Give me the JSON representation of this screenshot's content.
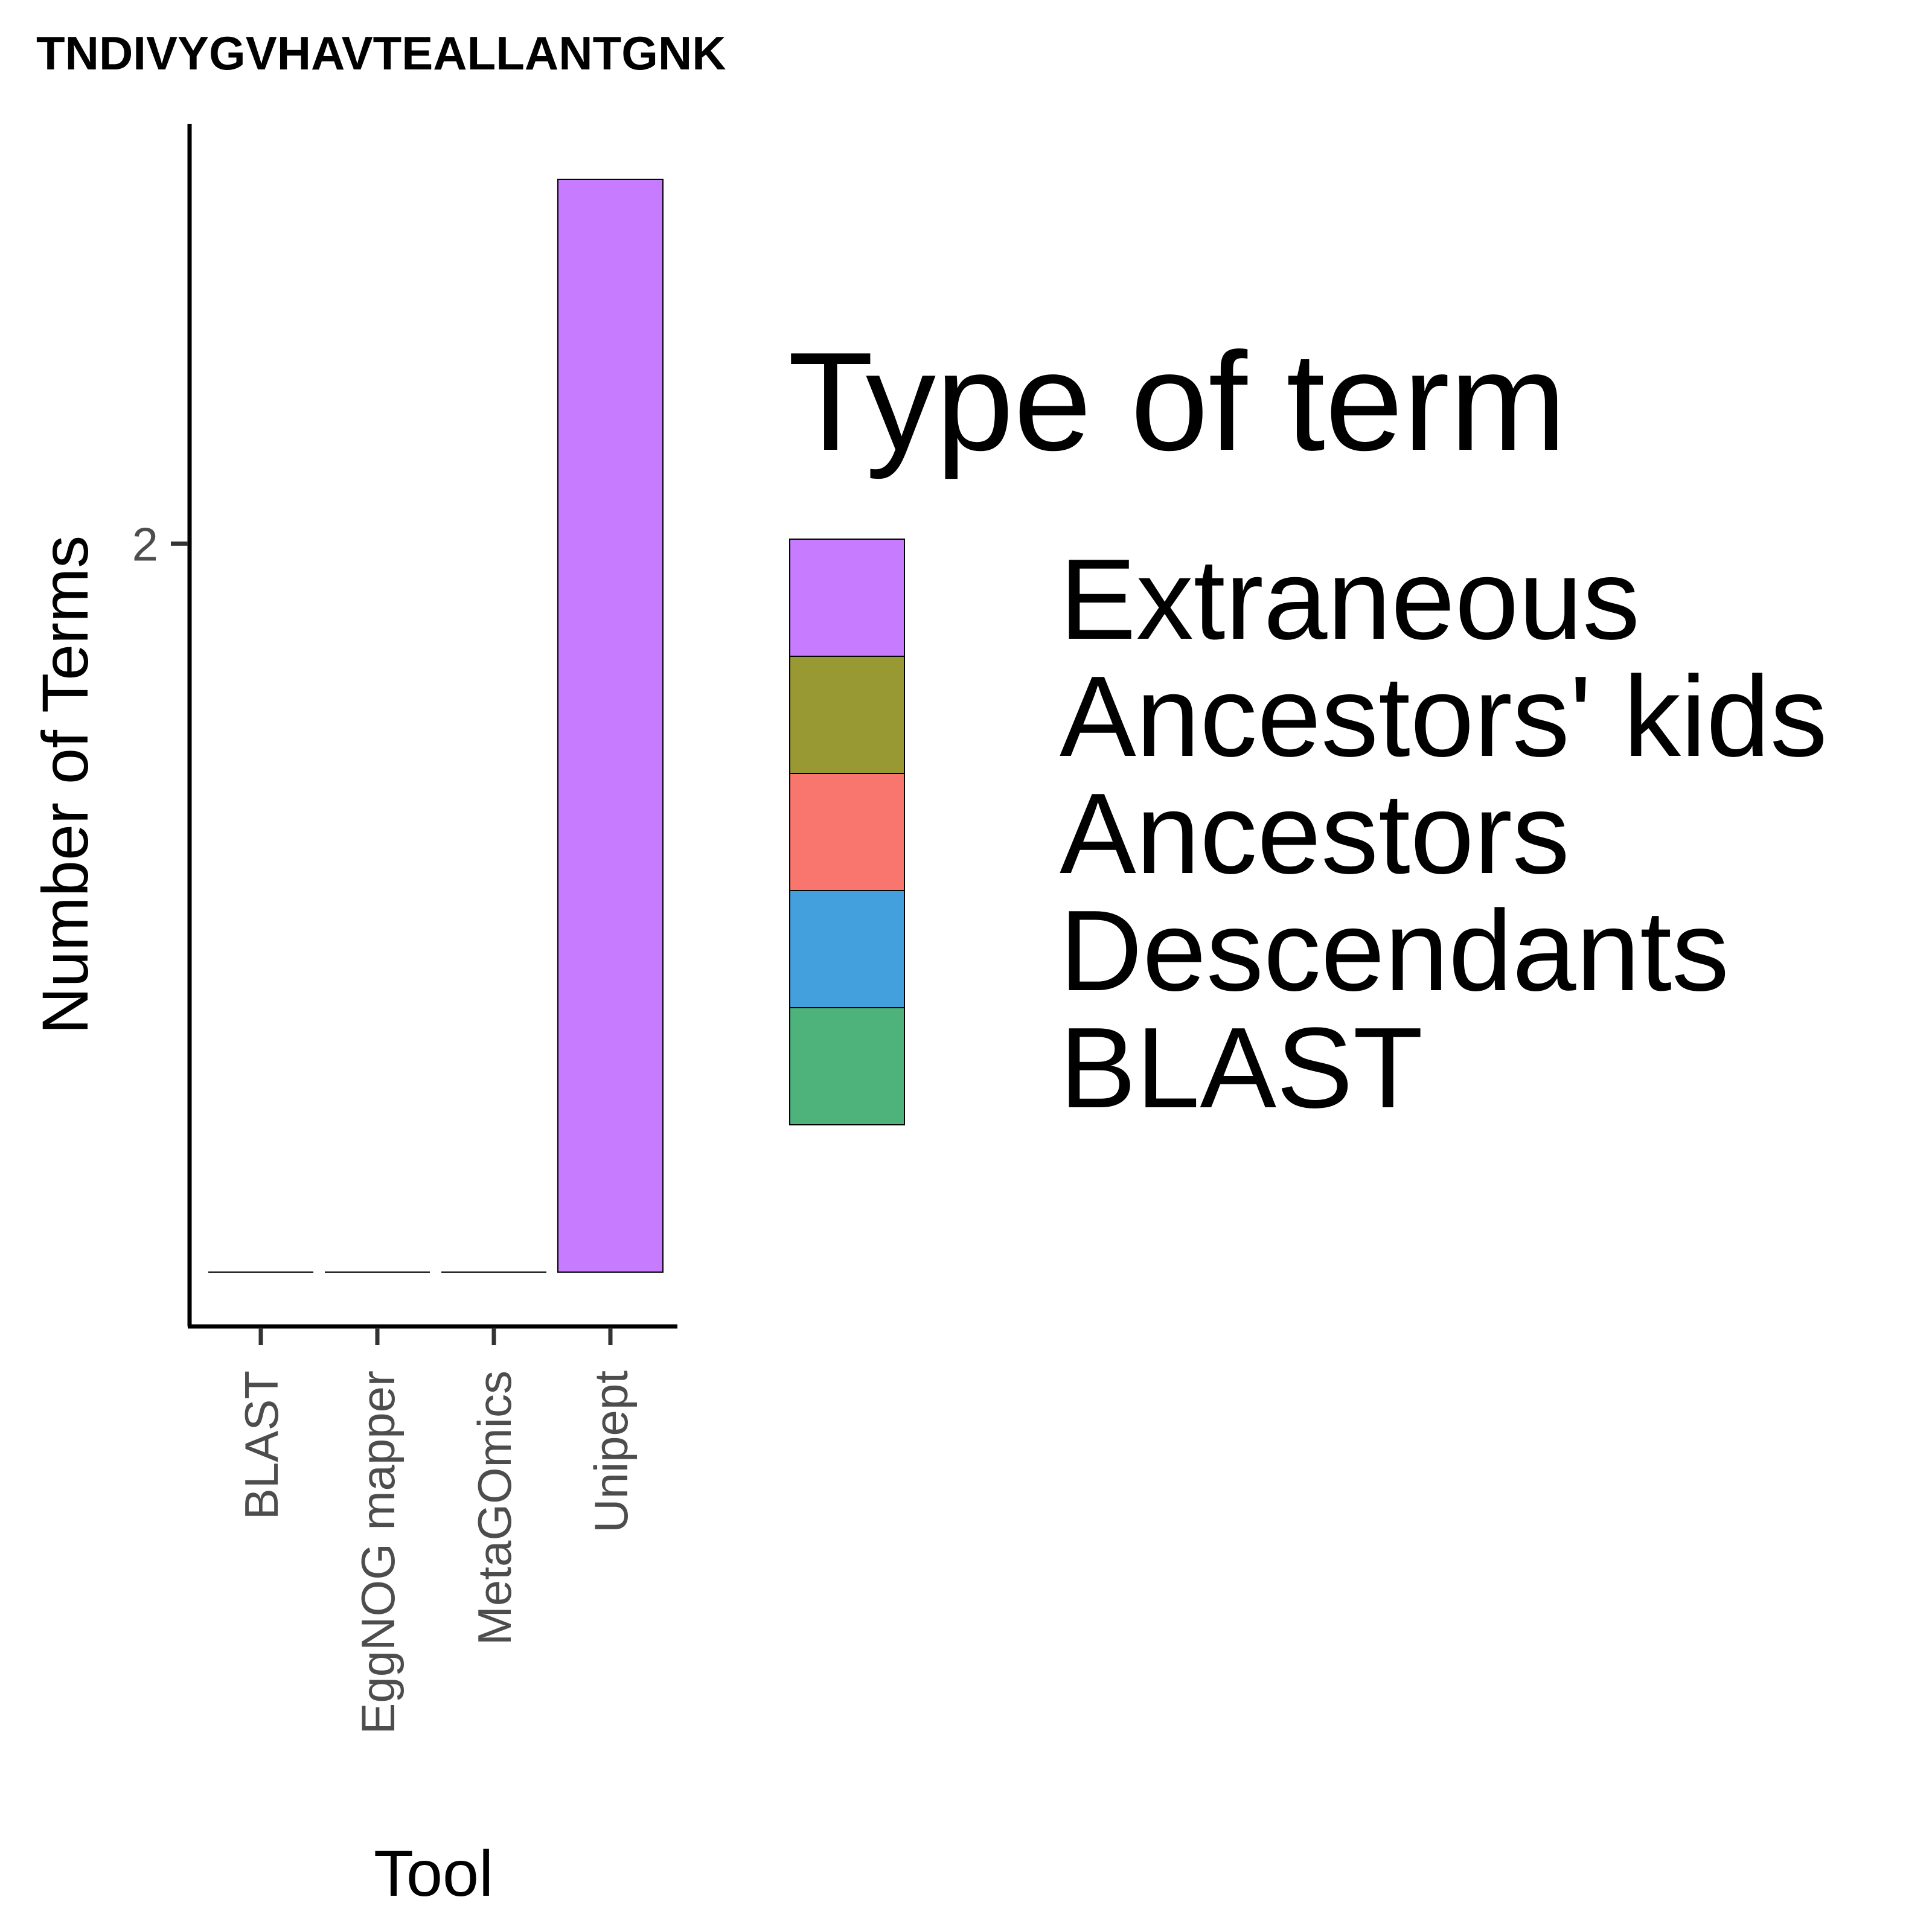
{
  "chart_data": {
    "type": "bar",
    "stacked": true,
    "title": "TNDIVYGVHAVTEALLANTGNK",
    "xlabel": "Tool",
    "ylabel": "Number of Terms",
    "categories": [
      "BLAST",
      "EggNOG mapper",
      "MetaGOmics",
      "Unipept"
    ],
    "series": [
      {
        "name": "Extraneous",
        "color": "#C77CFF",
        "values": [
          0,
          0,
          0,
          3
        ]
      },
      {
        "name": "Ancestors' kids",
        "color": "#999933",
        "values": [
          0,
          0,
          0,
          0
        ]
      },
      {
        "name": "Ancestors",
        "color": "#F8766D",
        "values": [
          0,
          0,
          0,
          0
        ]
      },
      {
        "name": "Descendants",
        "color": "#44A0DD",
        "values": [
          0,
          0,
          0,
          0
        ]
      },
      {
        "name": "BLAST",
        "color": "#4DB37A",
        "values": [
          0,
          0,
          0,
          0
        ]
      }
    ],
    "yticks": [
      2
    ],
    "ylim": [
      0,
      3.15
    ],
    "grid": false,
    "legend": {
      "title": "Type of term",
      "placement": "right"
    }
  }
}
